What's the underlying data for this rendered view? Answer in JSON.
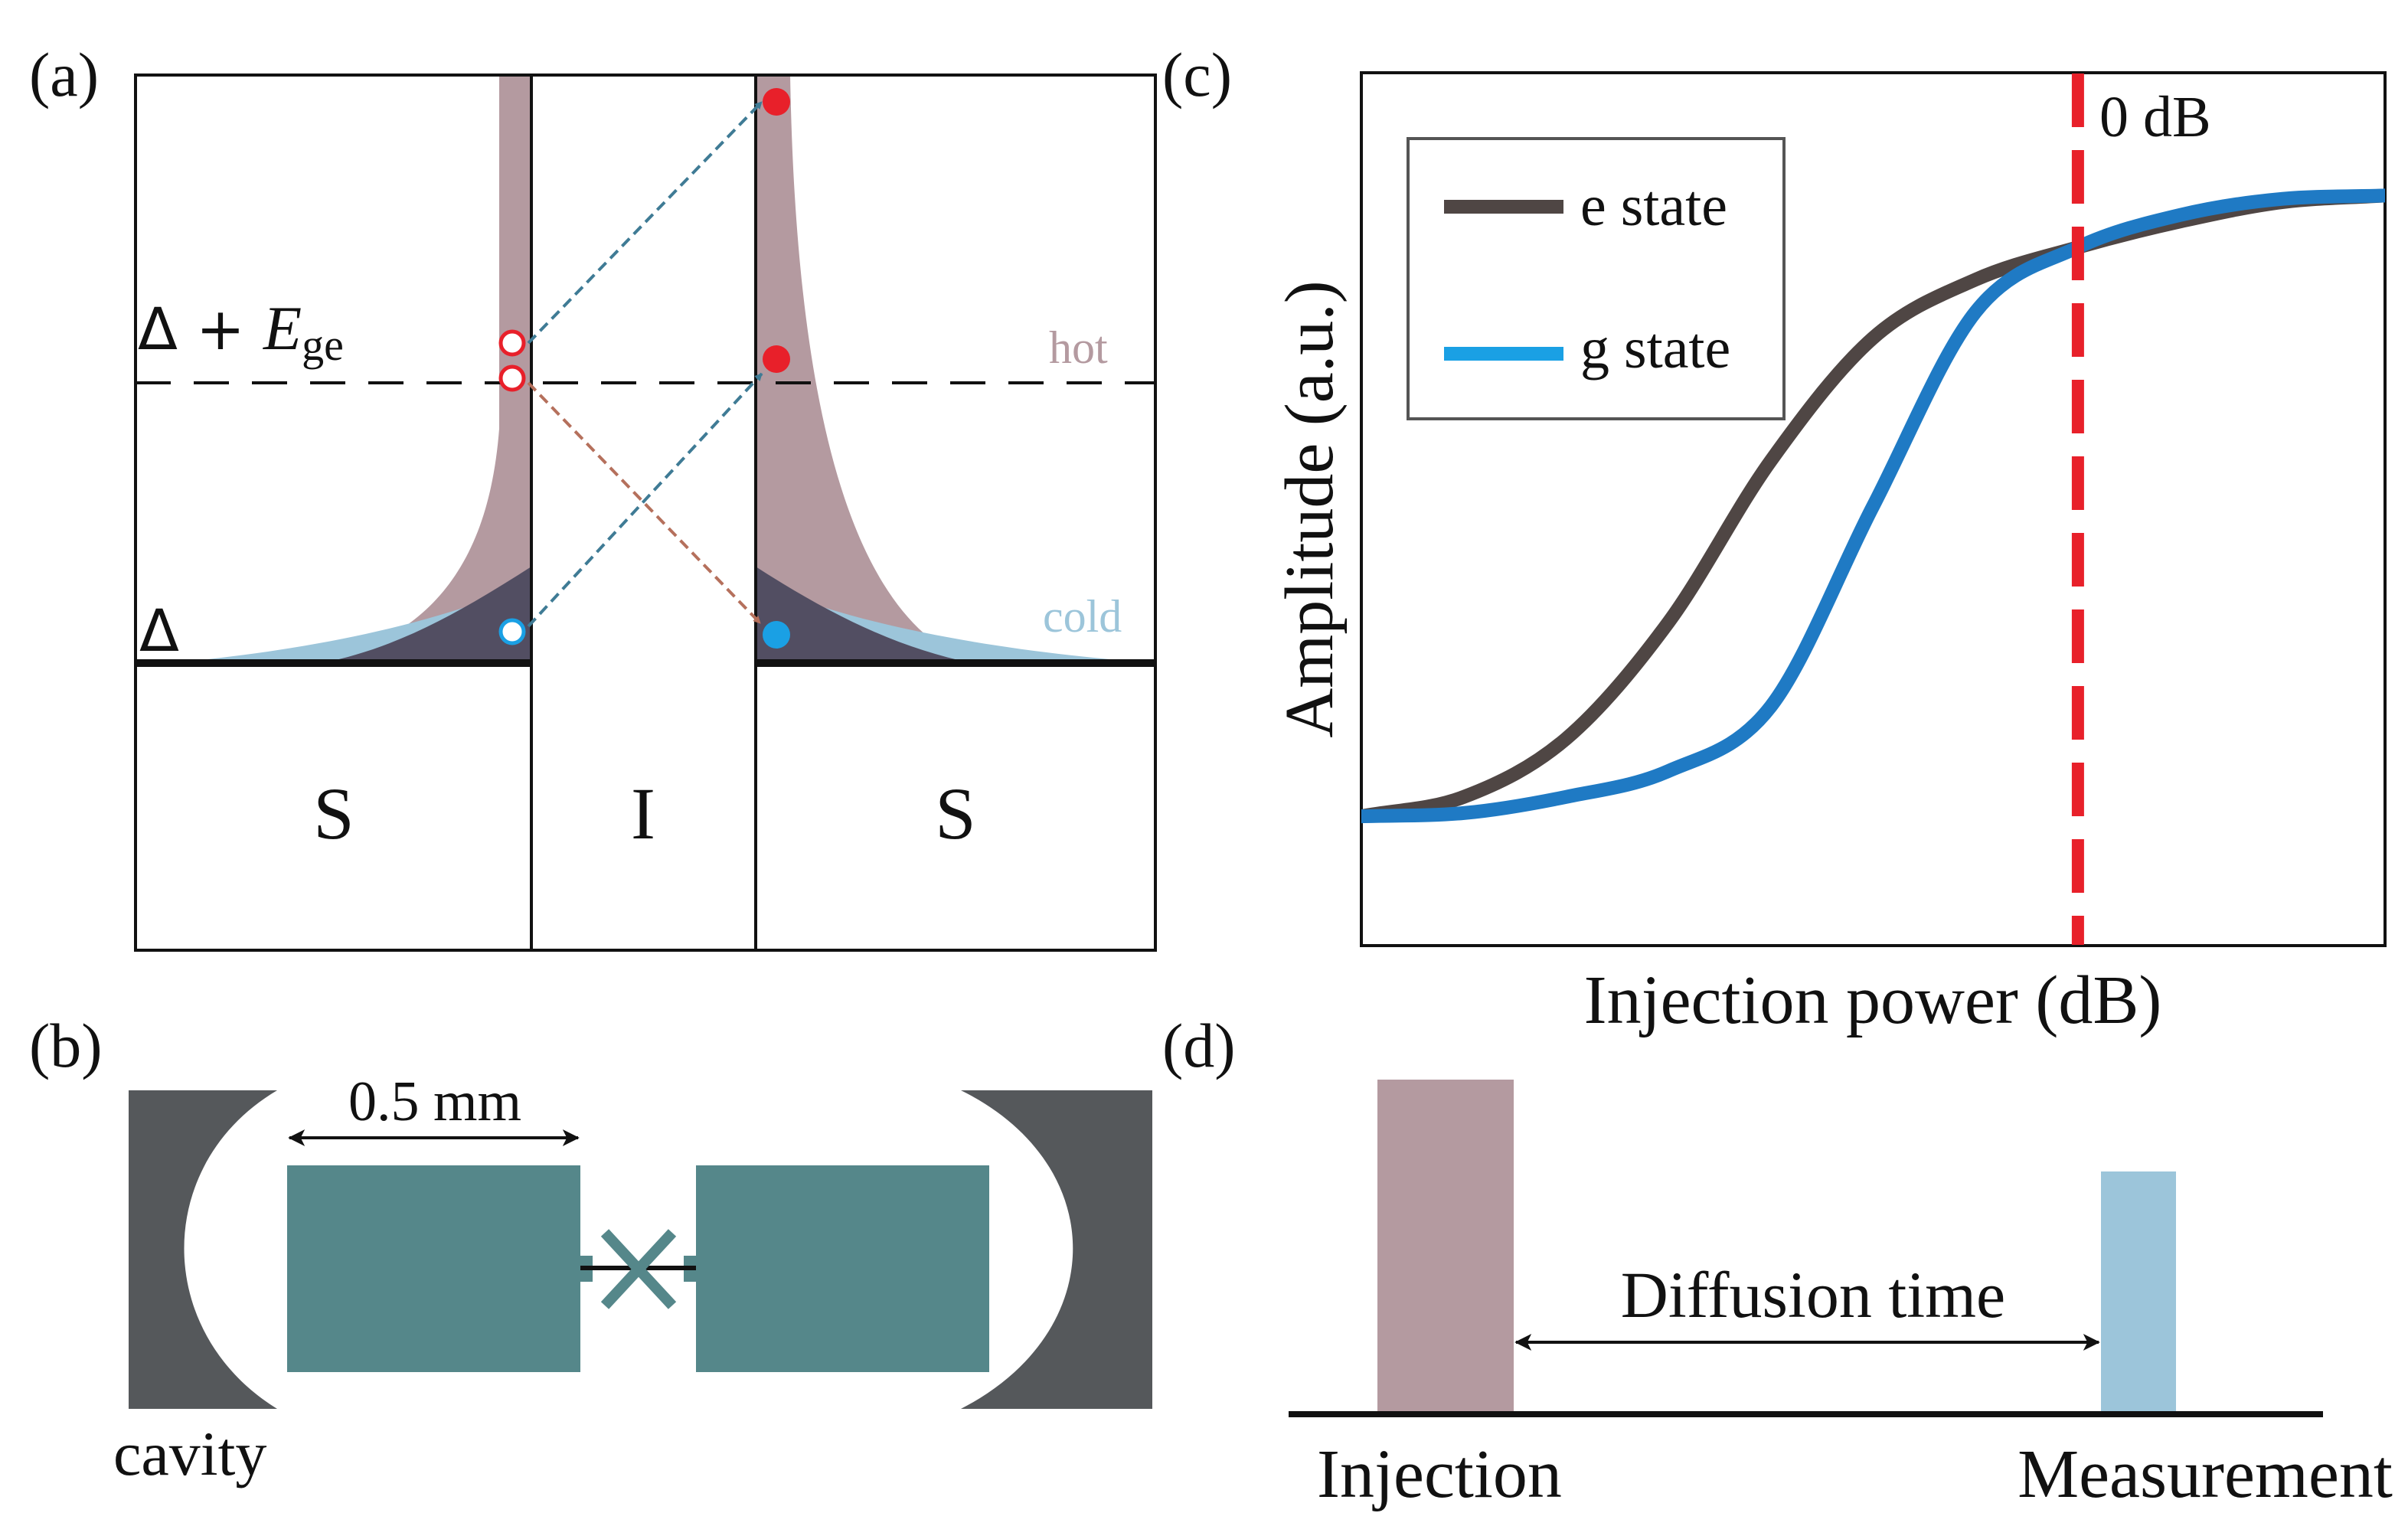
{
  "panel_a": {
    "label": "(a)",
    "delta_plus_symbol": "Δ + ",
    "E_symbol": "E",
    "ge_subscript": "ge",
    "delta_symbol": "Δ",
    "hot_label": "hot",
    "cold_label": "cold",
    "left_region": "S",
    "middle_region": "I",
    "right_region": "S"
  },
  "panel_b": {
    "label": "(b)",
    "dimension_label": "0.5 mm",
    "cavity_label": "cavity"
  },
  "panel_c": {
    "label": "(c)",
    "legend": [
      {
        "name": "e state",
        "color": "#4f4644"
      },
      {
        "name": "g state",
        "color": "#1f7ac4"
      }
    ],
    "marker_label": "0 dB",
    "xlabel": "Injection power (dB)",
    "ylabel": "Amplitude (a.u.)"
  },
  "panel_d": {
    "label": "(d)",
    "diffusion_label": "Diffusion time",
    "injection_label": "Injection",
    "measurement_label": "Measurement"
  },
  "chart_data": {
    "type": "line",
    "title": "",
    "xlabel": "Injection power (dB)",
    "ylabel": "Amplitude (a.u.)",
    "x": [
      0,
      1,
      2,
      3,
      4,
      5,
      6,
      7,
      8,
      9,
      10
    ],
    "series": [
      {
        "name": "e state",
        "color": "#4f4644",
        "values": [
          0.0,
          0.03,
          0.12,
          0.3,
          0.55,
          0.74,
          0.83,
          0.88,
          0.92,
          0.95,
          0.96
        ]
      },
      {
        "name": "g state",
        "color": "#1f7ac4",
        "values": [
          0.0,
          0.005,
          0.03,
          0.07,
          0.17,
          0.48,
          0.78,
          0.88,
          0.93,
          0.955,
          0.96
        ]
      }
    ],
    "marker_x": 7,
    "marker_label": "0 dB",
    "xlim": [
      0,
      10
    ],
    "ylim": [
      -0.2,
      1.15
    ],
    "grid": false,
    "legend_position": "top-left",
    "colors": {
      "marker": "#e8202a"
    }
  },
  "colors": {
    "hot": "#b49aa0",
    "cold": "#9cc5da",
    "overlap": "#524e62",
    "teal": "#55878a",
    "cavity": "#55585b",
    "red_dot": "#e8202a",
    "blue_dot": "#1aa0e4",
    "arrow_blue": "#3f7b95",
    "arrow_red": "#b5705c",
    "injection_bar": "#b49aa0",
    "measurement_bar": "#9cc5da"
  }
}
